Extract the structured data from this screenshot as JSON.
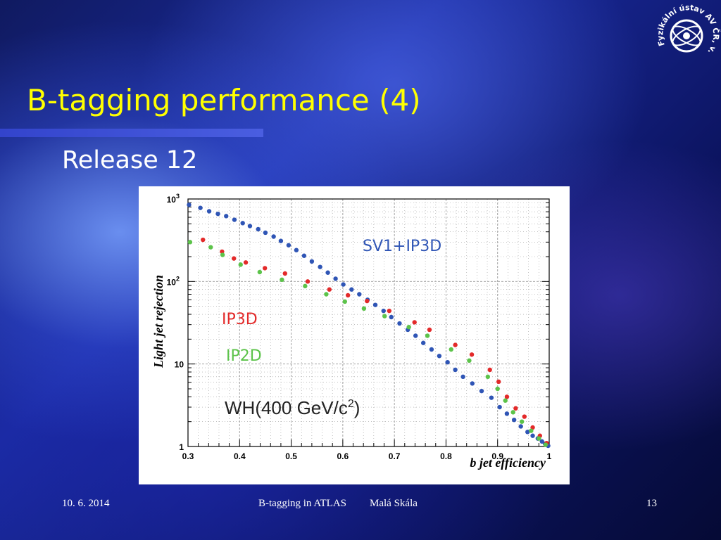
{
  "slide": {
    "title": "B-tagging performance (4)",
    "subtitle": "Release 12",
    "logo_text": "Fyzikální ústav AV ČR, v.v.i."
  },
  "footer": {
    "date": "10. 6. 2014",
    "talk_title": "B-tagging in ATLAS",
    "author": "Malá Skála",
    "page": "13"
  },
  "chart_data": {
    "type": "scatter",
    "xlabel": "b jet efficiency",
    "ylabel": "Light jet rejection",
    "xlim": [
      0.3,
      1.0
    ],
    "ylim": [
      1,
      1000
    ],
    "yscale": "log",
    "grid": true,
    "x_ticks": [
      "0.3",
      "0.4",
      "0.5",
      "0.6",
      "0.7",
      "0.8",
      "0.9",
      "1"
    ],
    "y_ticks": [
      {
        "value": 1,
        "label": "1"
      },
      {
        "value": 10,
        "label": "10"
      },
      {
        "value": 100,
        "label": "10",
        "exp": "2"
      },
      {
        "value": 1000,
        "label": "10",
        "exp": "3"
      }
    ],
    "annotation": {
      "base": "WH(400 GeV/c",
      "sup": "2",
      "tail": ")"
    },
    "series": [
      {
        "name": "SV1+IP3D",
        "color": "#2f55b5",
        "x": [
          0.302,
          0.324,
          0.341,
          0.358,
          0.374,
          0.39,
          0.406,
          0.42,
          0.436,
          0.45,
          0.466,
          0.48,
          0.495,
          0.51,
          0.525,
          0.54,
          0.556,
          0.571,
          0.586,
          0.601,
          0.617,
          0.632,
          0.648,
          0.663,
          0.679,
          0.694,
          0.71,
          0.726,
          0.741,
          0.756,
          0.772,
          0.787,
          0.803,
          0.818,
          0.833,
          0.851,
          0.869,
          0.888,
          0.904,
          0.918,
          0.932,
          0.945,
          0.958,
          0.968,
          0.978,
          0.986,
          0.992,
          0.998
        ],
        "y": [
          850,
          780,
          710,
          660,
          620,
          560,
          510,
          470,
          430,
          390,
          350,
          310,
          275,
          240,
          205,
          175,
          150,
          128,
          108,
          92,
          80,
          70,
          60,
          52,
          44,
          37,
          31,
          26,
          22,
          18,
          15,
          12.5,
          10.5,
          8.5,
          7.0,
          5.8,
          4.7,
          3.9,
          3.0,
          2.5,
          2.1,
          1.75,
          1.5,
          1.35,
          1.25,
          1.15,
          1.08,
          1.02
        ]
      },
      {
        "name": "IP3D",
        "color": "#e32a2a",
        "x": [
          0.329,
          0.366,
          0.389,
          0.412,
          0.449,
          0.488,
          0.532,
          0.574,
          0.61,
          0.647,
          0.69,
          0.739,
          0.768,
          0.818,
          0.85,
          0.885,
          0.902,
          0.918,
          0.935,
          0.952,
          0.968,
          0.982,
          0.995
        ],
        "y": [
          320,
          230,
          190,
          170,
          145,
          125,
          100,
          80,
          68,
          58,
          44,
          32,
          26,
          17,
          13,
          8.5,
          6.1,
          4.0,
          2.9,
          2.3,
          1.7,
          1.35,
          1.1
        ]
      },
      {
        "name": "IP2D",
        "color": "#5cc34a",
        "x": [
          0.304,
          0.344,
          0.367,
          0.402,
          0.439,
          0.482,
          0.527,
          0.568,
          0.604,
          0.641,
          0.681,
          0.728,
          0.764,
          0.81,
          0.845,
          0.881,
          0.9,
          0.915,
          0.93,
          0.947,
          0.965,
          0.98,
          0.993
        ],
        "y": [
          300,
          260,
          210,
          160,
          130,
          105,
          88,
          70,
          57,
          47,
          38,
          28,
          22,
          15,
          11,
          7,
          5,
          3.6,
          2.6,
          2.0,
          1.55,
          1.25,
          1.05
        ]
      }
    ]
  }
}
